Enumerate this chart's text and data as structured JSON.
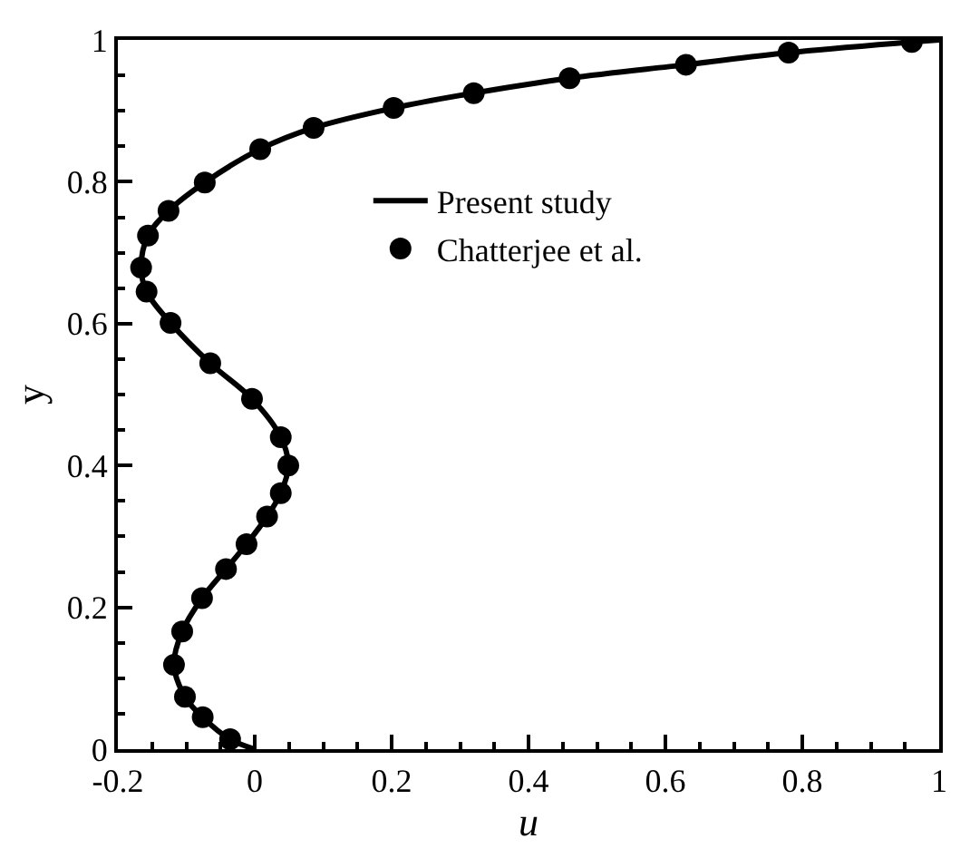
{
  "chart_data": {
    "type": "line",
    "xlabel": "u",
    "ylabel": "y",
    "xlim": [
      -0.2,
      1
    ],
    "ylim": [
      0,
      1
    ],
    "xticks": [
      {
        "value": -0.2,
        "label": "-0.2"
      },
      0,
      0.2,
      0.4,
      0.6,
      0.8,
      1
    ],
    "yticks": [
      0,
      0.2,
      0.4,
      0.6,
      0.8,
      1
    ],
    "legend": "top right",
    "series": [
      {
        "name": "Present study",
        "color": "#000000",
        "line_style": "solid",
        "marker": "none",
        "x": [
          0,
          -0.036,
          -0.076,
          -0.102,
          -0.118,
          -0.106,
          -0.077,
          -0.042,
          -0.012,
          0.018,
          0.038,
          0.049,
          0.038,
          -0.004,
          -0.065,
          -0.123,
          -0.158,
          -0.166,
          -0.156,
          -0.126,
          -0.073,
          0.008,
          0.086,
          0.203,
          0.32,
          0.46,
          0.63,
          0.78,
          0.96,
          1
        ],
        "values": [
          0,
          0.014,
          0.045,
          0.074,
          0.119,
          0.166,
          0.213,
          0.254,
          0.289,
          0.328,
          0.361,
          0.4,
          0.44,
          0.494,
          0.544,
          0.601,
          0.645,
          0.679,
          0.724,
          0.759,
          0.799,
          0.846,
          0.876,
          0.904,
          0.925,
          0.946,
          0.965,
          0.982,
          0.997,
          1
        ]
      },
      {
        "name": "Chatterjee et al.",
        "type": "scatter",
        "color": "#000000",
        "marker": "circle",
        "x": [
          -0.036,
          -0.076,
          -0.102,
          -0.118,
          -0.106,
          -0.077,
          -0.042,
          -0.012,
          0.018,
          0.038,
          0.049,
          0.038,
          -0.004,
          -0.065,
          -0.123,
          -0.158,
          -0.166,
          -0.156,
          -0.126,
          -0.073,
          0.008,
          0.086,
          0.203,
          0.32,
          0.46,
          0.63,
          0.78,
          0.96
        ],
        "values": [
          0.014,
          0.045,
          0.074,
          0.119,
          0.166,
          0.213,
          0.254,
          0.289,
          0.328,
          0.361,
          0.4,
          0.44,
          0.494,
          0.544,
          0.601,
          0.645,
          0.679,
          0.724,
          0.759,
          0.799,
          0.846,
          0.876,
          0.904,
          0.925,
          0.946,
          0.965,
          0.982,
          0.997
        ]
      }
    ]
  }
}
